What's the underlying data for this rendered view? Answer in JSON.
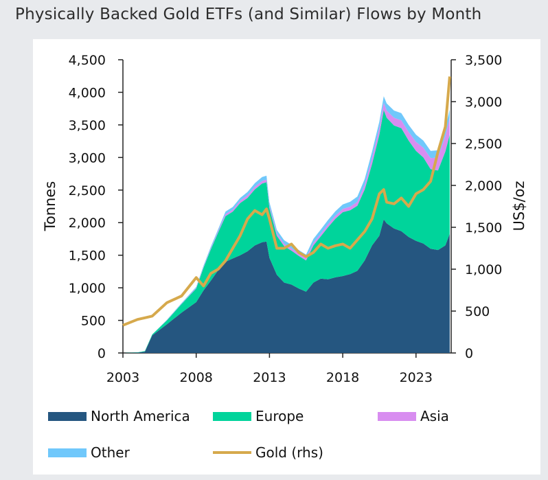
{
  "title": "Physically Backed Gold ETFs (and Similar) Flows by Month",
  "colors": {
    "north_america": "#255680",
    "europe": "#00d49b",
    "asia": "#d88df0",
    "other": "#70c8fb",
    "gold": "#d6a94c"
  },
  "chart_data": {
    "type": "area",
    "title": "",
    "ylabel": "Tonnes",
    "y2label": "US$/oz",
    "ylim": [
      0,
      4500
    ],
    "y2lim": [
      0,
      3500
    ],
    "xlim": [
      2003,
      2025.4
    ],
    "x_ticks": [
      2003,
      2008,
      2013,
      2018,
      2023
    ],
    "y_ticks": [
      "0",
      "500",
      "1,000",
      "1,500",
      "2,000",
      "2,500",
      "3,000",
      "3,500",
      "4,000",
      "4,500"
    ],
    "y2_ticks": [
      "0",
      "500",
      "1,000",
      "1,500",
      "2,000",
      "2,500",
      "3,000",
      "3,500"
    ],
    "legend": [
      "North America",
      "Europe",
      "Asia",
      "Other",
      "Gold (rhs)"
    ],
    "legend_position": "bottom",
    "x": [
      2003.0,
      2004.0,
      2004.5,
      2005.0,
      2006.0,
      2007.0,
      2008.0,
      2008.5,
      2009.0,
      2009.5,
      2010.0,
      2010.5,
      2011.0,
      2011.5,
      2012.0,
      2012.5,
      2012.8,
      2013.0,
      2013.5,
      2014.0,
      2014.5,
      2015.0,
      2015.5,
      2016.0,
      2016.5,
      2017.0,
      2017.5,
      2018.0,
      2018.5,
      2019.0,
      2019.5,
      2020.0,
      2020.5,
      2020.8,
      2021.0,
      2021.5,
      2022.0,
      2022.5,
      2023.0,
      2023.5,
      2024.0,
      2024.5,
      2025.0,
      2025.3
    ],
    "series": [
      {
        "name": "North America",
        "values": [
          0,
          5,
          20,
          270,
          440,
          620,
          780,
          960,
          1110,
          1270,
          1400,
          1450,
          1500,
          1560,
          1650,
          1700,
          1710,
          1460,
          1200,
          1080,
          1050,
          990,
          940,
          1080,
          1140,
          1130,
          1160,
          1180,
          1210,
          1260,
          1420,
          1650,
          1800,
          2050,
          1990,
          1910,
          1870,
          1780,
          1720,
          1680,
          1600,
          1580,
          1650,
          1830
        ]
      },
      {
        "name": "Europe",
        "values": [
          0,
          5,
          10,
          15,
          60,
          130,
          210,
          350,
          480,
          580,
          700,
          720,
          800,
          820,
          860,
          900,
          910,
          760,
          600,
          560,
          520,
          500,
          480,
          570,
          650,
          800,
          900,
          980,
          980,
          1000,
          1090,
          1250,
          1550,
          1680,
          1620,
          1580,
          1580,
          1480,
          1380,
          1320,
          1220,
          1220,
          1440,
          1520
        ]
      },
      {
        "name": "Asia",
        "values": [
          0,
          0,
          0,
          0,
          5,
          5,
          10,
          10,
          15,
          20,
          30,
          30,
          35,
          40,
          40,
          40,
          40,
          35,
          35,
          35,
          35,
          35,
          35,
          40,
          40,
          45,
          45,
          50,
          55,
          60,
          70,
          90,
          100,
          110,
          110,
          120,
          120,
          130,
          140,
          150,
          170,
          200,
          240,
          260
        ]
      },
      {
        "name": "Other",
        "values": [
          0,
          0,
          0,
          0,
          5,
          10,
          15,
          20,
          25,
          30,
          40,
          40,
          45,
          50,
          55,
          60,
          60,
          55,
          55,
          55,
          55,
          55,
          55,
          60,
          65,
          65,
          70,
          70,
          75,
          80,
          90,
          100,
          100,
          100,
          110,
          110,
          110,
          110,
          110,
          110,
          110,
          110,
          120,
          130
        ]
      },
      {
        "name": "Gold (rhs)",
        "axis": "right",
        "values": [
          330,
          400,
          420,
          440,
          600,
          680,
          900,
          800,
          950,
          1000,
          1100,
          1250,
          1400,
          1600,
          1700,
          1650,
          1720,
          1600,
          1250,
          1250,
          1300,
          1200,
          1150,
          1200,
          1300,
          1250,
          1280,
          1300,
          1250,
          1350,
          1450,
          1600,
          1900,
          1950,
          1800,
          1780,
          1850,
          1750,
          1900,
          1950,
          2050,
          2400,
          2700,
          3300
        ]
      }
    ]
  }
}
